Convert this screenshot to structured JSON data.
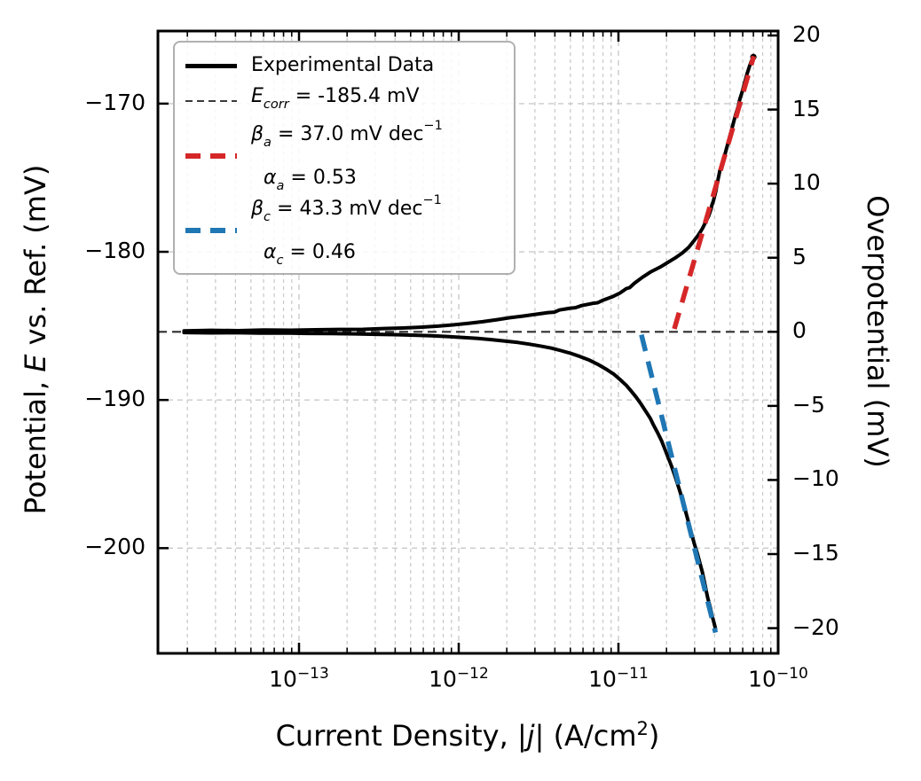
{
  "figure": {
    "xlabel": {
      "prefix": "Current Density, |",
      "italic": "j",
      "mid": "| (A/cm",
      "sup": "2",
      "suffix": ")"
    },
    "ylabel_left": {
      "prefix": "Potential, ",
      "italic": "E",
      "suffix": " vs. Ref. (mV)"
    },
    "ylabel_right": "Overpotential (mV)"
  },
  "legend": {
    "experimental": {
      "label": "Experimental Data"
    },
    "ecorr": {
      "sym": "E",
      "sub": "corr",
      "rest": " = -185.4 mV"
    },
    "anodic": {
      "sym": "β",
      "sub": "a",
      "rest": " = 37.0 mV dec",
      "sup": "−1",
      "line2_sym": "α",
      "line2_sub": "a",
      "line2_rest": " = 0.53"
    },
    "cathodic": {
      "sym": "β",
      "sub": "c",
      "rest": " = 43.3 mV dec",
      "sup": "−1",
      "line2_sym": "α",
      "line2_sub": "c",
      "line2_rest": " = 0.46"
    }
  },
  "chart_data": {
    "type": "line",
    "x_scale": "log10",
    "title": "",
    "xlabel": "Current Density, |j| (A/cm^2)",
    "ylabel_left": "Potential, E vs. Ref. (mV)",
    "ylabel_right": "Overpotential (mV)",
    "xlim_log10": [
      -13.8833,
      -10.0
    ],
    "ylim_E_mV": [
      -207.1,
      -165.1
    ],
    "E_corr_mV": -185.4,
    "beta_a_mV_per_dec": 37.0,
    "alpha_a": 0.53,
    "beta_c_mV_per_dec": 43.3,
    "alpha_c": 0.46,
    "xticks_exp": [
      -13,
      -12,
      -11,
      -10
    ],
    "yticks_left_mV": [
      -170,
      -180,
      -190,
      -200
    ],
    "yticks_right_mV": [
      20,
      15,
      10,
      5,
      0,
      -5,
      -10,
      -15,
      -20
    ],
    "grid": true,
    "legend_position": "upper left",
    "colors": {
      "experimental": "#000000",
      "ecorr_line": "#2f2f2f",
      "anodic_fit": "#d62728",
      "cathodic_fit": "#1f77b4",
      "grid": "#c9c9c9",
      "legend_border": "#b0b0b0"
    },
    "series": {
      "experimental_anodic_points_logj_eta": [
        [
          -13.72,
          0.06
        ],
        [
          -13.55,
          0.1
        ],
        [
          -13.38,
          0.08
        ],
        [
          -13.22,
          0.12
        ],
        [
          -13.05,
          0.11
        ],
        [
          -12.9,
          0.14
        ],
        [
          -12.75,
          0.16
        ],
        [
          -12.6,
          0.17
        ],
        [
          -12.47,
          0.22
        ],
        [
          -12.35,
          0.26
        ],
        [
          -12.24,
          0.31
        ],
        [
          -12.13,
          0.38
        ],
        [
          -12.03,
          0.47
        ],
        [
          -11.94,
          0.57
        ],
        [
          -11.85,
          0.68
        ],
        [
          -11.76,
          0.82
        ],
        [
          -11.68,
          0.95
        ],
        [
          -11.6,
          1.06
        ],
        [
          -11.52,
          1.18
        ],
        [
          -11.44,
          1.3
        ],
        [
          -11.4,
          1.33
        ],
        [
          -11.37,
          1.47
        ],
        [
          -11.3,
          1.6
        ],
        [
          -11.27,
          1.63
        ],
        [
          -11.23,
          1.77
        ],
        [
          -11.16,
          1.92
        ],
        [
          -11.13,
          1.96
        ],
        [
          -11.1,
          2.12
        ],
        [
          -11.04,
          2.36
        ],
        [
          -10.99,
          2.62
        ],
        [
          -10.95,
          2.92
        ],
        [
          -10.93,
          2.98
        ],
        [
          -10.9,
          3.28
        ],
        [
          -10.85,
          3.68
        ],
        [
          -10.8,
          4.03
        ],
        [
          -10.74,
          4.36
        ],
        [
          -10.69,
          4.69
        ],
        [
          -10.64,
          5.02
        ],
        [
          -10.6,
          5.32
        ],
        [
          -10.56,
          5.7
        ],
        [
          -10.53,
          6.1
        ],
        [
          -10.5,
          6.53
        ],
        [
          -10.475,
          6.95
        ],
        [
          -10.455,
          7.38
        ],
        [
          -10.435,
          7.82
        ],
        [
          -10.42,
          8.28
        ],
        [
          -10.415,
          8.55
        ],
        [
          -10.405,
          8.85
        ],
        [
          -10.39,
          9.5
        ],
        [
          -10.38,
          10.1
        ],
        [
          -10.37,
          10.6
        ],
        [
          -10.365,
          10.9
        ],
        [
          -10.355,
          11.1
        ],
        [
          -10.34,
          11.7
        ],
        [
          -10.325,
          12.3
        ],
        [
          -10.31,
          12.9
        ],
        [
          -10.295,
          13.5
        ],
        [
          -10.28,
          14.1
        ],
        [
          -10.265,
          14.7
        ],
        [
          -10.25,
          15.2
        ],
        [
          -10.24,
          15.7
        ],
        [
          -10.225,
          16.2
        ],
        [
          -10.21,
          16.8
        ],
        [
          -10.195,
          17.4
        ],
        [
          -10.18,
          17.9
        ],
        [
          -10.17,
          18.2
        ],
        [
          -10.16,
          18.45
        ],
        [
          -10.155,
          18.55
        ]
      ],
      "experimental_cathodic_points_logj_eta": [
        [
          -13.72,
          -0.05
        ],
        [
          -13.55,
          -0.07
        ],
        [
          -13.4,
          -0.06
        ],
        [
          -13.25,
          -0.09
        ],
        [
          -13.1,
          -0.08
        ],
        [
          -12.95,
          -0.11
        ],
        [
          -12.8,
          -0.12
        ],
        [
          -12.65,
          -0.14
        ],
        [
          -12.52,
          -0.17
        ],
        [
          -12.4,
          -0.19
        ],
        [
          -12.28,
          -0.23
        ],
        [
          -12.17,
          -0.27
        ],
        [
          -12.07,
          -0.32
        ],
        [
          -11.97,
          -0.38
        ],
        [
          -11.88,
          -0.45
        ],
        [
          -11.79,
          -0.53
        ],
        [
          -11.71,
          -0.62
        ],
        [
          -11.63,
          -0.72
        ],
        [
          -11.56,
          -0.83
        ],
        [
          -11.49,
          -0.96
        ],
        [
          -11.42,
          -1.1
        ],
        [
          -11.36,
          -1.27
        ],
        [
          -11.3,
          -1.45
        ],
        [
          -11.24,
          -1.67
        ],
        [
          -11.18,
          -1.92
        ],
        [
          -11.13,
          -2.19
        ],
        [
          -11.08,
          -2.5
        ],
        [
          -11.03,
          -2.85
        ],
        [
          -10.99,
          -3.22
        ],
        [
          -10.95,
          -3.62
        ],
        [
          -10.92,
          -4.0
        ],
        [
          -10.89,
          -4.4
        ],
        [
          -10.86,
          -4.85
        ],
        [
          -10.83,
          -5.35
        ],
        [
          -10.8,
          -5.85
        ],
        [
          -10.78,
          -6.3
        ],
        [
          -10.755,
          -6.8
        ],
        [
          -10.73,
          -7.35
        ],
        [
          -10.71,
          -7.9
        ],
        [
          -10.69,
          -8.45
        ],
        [
          -10.67,
          -9.0
        ],
        [
          -10.65,
          -9.6
        ],
        [
          -10.635,
          -10.1
        ],
        [
          -10.62,
          -10.6
        ],
        [
          -10.6,
          -11.3
        ],
        [
          -10.585,
          -11.9
        ],
        [
          -10.57,
          -12.5
        ],
        [
          -10.555,
          -13.1
        ],
        [
          -10.54,
          -13.7
        ],
        [
          -10.525,
          -14.3
        ],
        [
          -10.505,
          -15.0
        ],
        [
          -10.49,
          -15.6
        ],
        [
          -10.475,
          -16.2
        ],
        [
          -10.462,
          -16.85
        ],
        [
          -10.45,
          -17.5
        ],
        [
          -10.44,
          -18.0
        ],
        [
          -10.425,
          -18.6
        ],
        [
          -10.415,
          -19.1
        ],
        [
          -10.405,
          -19.5
        ],
        [
          -10.398,
          -19.8
        ],
        [
          -10.392,
          -20.05
        ]
      ],
      "anodic_fit_points_logj_eta": [
        [
          -10.65,
          0.2
        ],
        [
          -10.153,
          18.6
        ]
      ],
      "cathodic_fit_points_logj_eta": [
        [
          -10.856,
          -0.2
        ],
        [
          -10.392,
          -20.3
        ]
      ]
    }
  }
}
